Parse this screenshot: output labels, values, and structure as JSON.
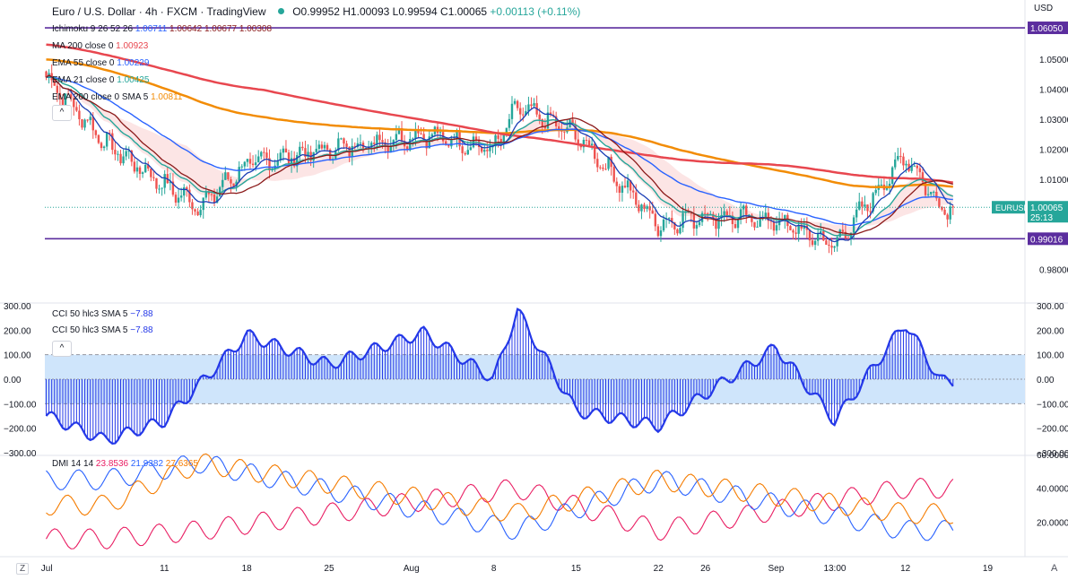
{
  "header": {
    "symbol": "Euro / U.S. Dollar · 4h · FXCM · TradingView",
    "ohlc": "O0.99952 H1.00093 L0.99594 C1.00065",
    "change": "+0.00113 (+0.11%)",
    "currency": "USD"
  },
  "indicators": [
    {
      "name": "Ichimoku 9 26 52 26",
      "values": [
        "1.00711",
        "1.00642",
        "1.00677",
        "1.00308"
      ],
      "colors": [
        "#2962ff",
        "#8b1a1a",
        "#8b1a1a",
        "#8b1a1a"
      ]
    },
    {
      "name": "MA 200 close 0",
      "values": [
        "1.00923"
      ],
      "colors": [
        "#e8474f"
      ]
    },
    {
      "name": "EMA 55 close 0",
      "values": [
        "1.00229"
      ],
      "colors": [
        "#2962ff"
      ]
    },
    {
      "name": "EMA 21 close 0",
      "values": [
        "1.00425"
      ],
      "colors": [
        "#26a69a"
      ]
    },
    {
      "name": "EMA 200 close 0 SMA 5",
      "values": [
        "1.00811"
      ],
      "colors": [
        "#f28c06"
      ]
    }
  ],
  "cci_labels": [
    {
      "name": "CCI 50 hlc3 SMA 5",
      "value": "−7.88"
    },
    {
      "name": "CCI 50 hlc3 SMA 5",
      "value": "−7.88"
    }
  ],
  "dmi_label": {
    "name": "DMI 14 14",
    "values": [
      "23.8536",
      "21.9382",
      "27.6365"
    ],
    "colors": [
      "#e91e63",
      "#2962ff",
      "#f57c00"
    ]
  },
  "collapse_glyph": "^",
  "zoom_label": "Z",
  "settings_label": "A",
  "colors": {
    "up": "#26a69a",
    "down": "#ef5350",
    "ema21": "#26a69a",
    "ema55": "#2962ff",
    "ma200": "#e8474f",
    "ema200": "#f28c06",
    "tenkan": "#2962ff",
    "kijun": "#8b1a1a",
    "hline": "#5b2d9e",
    "cci": "#2438e8",
    "cci_band": "#cfe5fb",
    "di_plus": "#e91e63",
    "di_minus": "#2962ff",
    "adx": "#f57c00"
  },
  "chart_data": [
    {
      "type": "candlestick",
      "title": "Euro / U.S. Dollar · 4h · FXCM",
      "y_ticks": [
        "1.05000",
        "1.04000",
        "1.03000",
        "1.02000",
        "1.01000",
        "0.98000"
      ],
      "y_range": [
        0.9765,
        1.0632
      ],
      "x_ticks": [
        "Jul",
        "11",
        "18",
        "25",
        "Aug",
        "8",
        "15",
        "22",
        "26",
        "Sep",
        "13:00",
        "12",
        "19"
      ],
      "horizontal_lines": [
        {
          "value": 1.0605,
          "label": "1.06050"
        },
        {
          "value": 0.99016,
          "label": "0.99016"
        }
      ],
      "last_price": {
        "value": 1.00065,
        "label": "1.00065",
        "symbol": "EURUSD",
        "countdown": "25:13"
      },
      "key_points": [
        {
          "x": "Jul 1",
          "close": 1.044
        },
        {
          "x": "Jul 6",
          "close": 1.022
        },
        {
          "x": "Jul 11",
          "close": 1.008
        },
        {
          "x": "Jul 14",
          "close": 1.001
        },
        {
          "x": "Jul 18",
          "close": 1.015
        },
        {
          "x": "Jul 25",
          "close": 1.02
        },
        {
          "x": "Aug 2",
          "close": 1.025
        },
        {
          "x": "Aug 8",
          "close": 1.02
        },
        {
          "x": "Aug 10",
          "close": 1.034
        },
        {
          "x": "Aug 15",
          "close": 1.025
        },
        {
          "x": "Aug 22",
          "close": 0.995
        },
        {
          "x": "Aug 26",
          "close": 0.998
        },
        {
          "x": "Sep 1",
          "close": 0.996
        },
        {
          "x": "Sep 6",
          "close": 0.988
        },
        {
          "x": "Sep 12",
          "close": 1.018
        },
        {
          "x": "Sep 15",
          "close": 1.0007
        }
      ],
      "series": [
        {
          "name": "MA 200 close 0",
          "last": 1.00923
        },
        {
          "name": "EMA 55 close 0",
          "last": 1.00229
        },
        {
          "name": "EMA 21 close 0",
          "last": 1.00425
        },
        {
          "name": "EMA 200 close 0 SMA 5",
          "last": 1.00811
        }
      ]
    },
    {
      "type": "histogram",
      "title": "CCI 50 hlc3 SMA 5",
      "y_ticks": [
        "300.00",
        "200.00",
        "100.00",
        "0.00",
        "−100.00",
        "−200.00",
        "−300.00"
      ],
      "y_range": [
        -300,
        300
      ],
      "band": [
        -100,
        100
      ],
      "key_points": [
        {
          "x": "Jul 1",
          "value": -150
        },
        {
          "x": "Jul 6",
          "value": -250
        },
        {
          "x": "Jul 11",
          "value": -170
        },
        {
          "x": "Jul 18",
          "value": 180
        },
        {
          "x": "Jul 25",
          "value": 60
        },
        {
          "x": "Aug 2",
          "value": 190
        },
        {
          "x": "Aug 8",
          "value": 0
        },
        {
          "x": "Aug 10",
          "value": 280
        },
        {
          "x": "Aug 15",
          "value": -130
        },
        {
          "x": "Aug 22",
          "value": -190
        },
        {
          "x": "Aug 26",
          "value": -60
        },
        {
          "x": "Sep 1",
          "value": 130
        },
        {
          "x": "Sep 6",
          "value": -170
        },
        {
          "x": "Sep 12",
          "value": 230
        },
        {
          "x": "Sep 15",
          "value": -7.88
        }
      ],
      "last": -7.88
    },
    {
      "type": "line",
      "title": "DMI 14 14",
      "y_ticks": [
        "60.0000",
        "40.0000",
        "20.0000"
      ],
      "y_range": [
        0,
        60
      ],
      "series": [
        {
          "name": "+DI",
          "last": 23.8536
        },
        {
          "name": "−DI",
          "last": 21.9382
        },
        {
          "name": "ADX",
          "last": 27.6365
        }
      ],
      "key_points": [
        {
          "x": "Jul 6",
          "+DI": 10,
          "−DI": 45,
          "ADX": 30
        },
        {
          "x": "Jul 14",
          "+DI": 15,
          "−DI": 55,
          "ADX": 55
        },
        {
          "x": "Aug 10",
          "+DI": 40,
          "−DI": 15,
          "ADX": 25
        },
        {
          "x": "Aug 22",
          "+DI": 15,
          "−DI": 45,
          "ADX": 45
        },
        {
          "x": "Sep 12",
          "+DI": 40,
          "−DI": 15,
          "ADX": 25
        }
      ]
    }
  ]
}
